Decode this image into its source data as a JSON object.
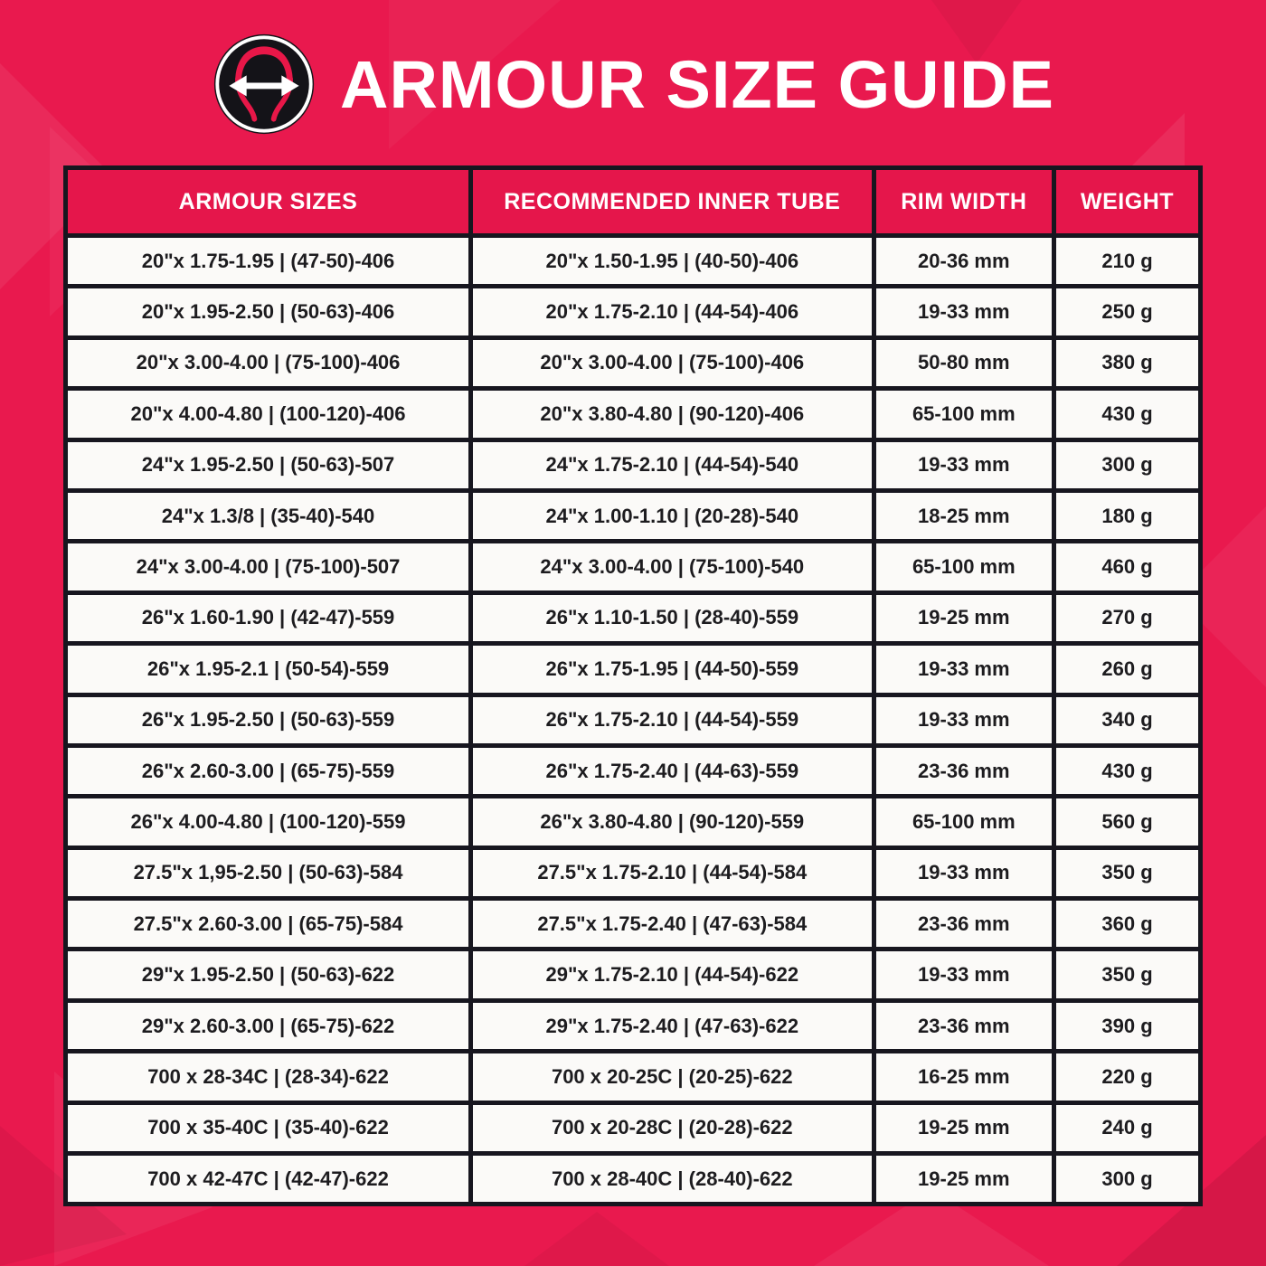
{
  "header": {
    "title": "ARMOUR SIZE GUIDE",
    "logo_name": "tire-width-arrow-logo"
  },
  "table": {
    "columns": [
      "ARMOUR SIZES",
      "RECOMMENDED INNER TUBE",
      "RIM WIDTH",
      "WEIGHT"
    ],
    "column_keys": [
      "armour-size",
      "inner-tube",
      "rim-width",
      "weight"
    ],
    "rows": [
      [
        "20\"x 1.75-1.95 | (47-50)-406",
        "20\"x 1.50-1.95 | (40-50)-406",
        "20-36 mm",
        "210 g"
      ],
      [
        "20\"x 1.95-2.50 | (50-63)-406",
        "20\"x 1.75-2.10 | (44-54)-406",
        "19-33 mm",
        "250 g"
      ],
      [
        "20\"x 3.00-4.00 | (75-100)-406",
        "20\"x 3.00-4.00 | (75-100)-406",
        "50-80 mm",
        "380 g"
      ],
      [
        "20\"x 4.00-4.80 | (100-120)-406",
        "20\"x 3.80-4.80 | (90-120)-406",
        "65-100 mm",
        "430 g"
      ],
      [
        "24\"x 1.95-2.50 | (50-63)-507",
        "24\"x 1.75-2.10 | (44-54)-540",
        "19-33 mm",
        "300 g"
      ],
      [
        "24\"x 1.3/8 | (35-40)-540",
        "24\"x 1.00-1.10 | (20-28)-540",
        "18-25 mm",
        "180 g"
      ],
      [
        "24\"x 3.00-4.00 | (75-100)-507",
        "24\"x 3.00-4.00 | (75-100)-540",
        "65-100 mm",
        "460 g"
      ],
      [
        "26\"x 1.60-1.90 | (42-47)-559",
        "26\"x 1.10-1.50 | (28-40)-559",
        "19-25 mm",
        "270 g"
      ],
      [
        "26\"x 1.95-2.1 | (50-54)-559",
        "26\"x 1.75-1.95 | (44-50)-559",
        "19-33 mm",
        "260 g"
      ],
      [
        "26\"x 1.95-2.50 | (50-63)-559",
        "26\"x 1.75-2.10 | (44-54)-559",
        "19-33 mm",
        "340 g"
      ],
      [
        "26\"x 2.60-3.00 | (65-75)-559",
        "26\"x 1.75-2.40 | (44-63)-559",
        "23-36 mm",
        "430 g"
      ],
      [
        "26\"x 4.00-4.80 | (100-120)-559",
        "26\"x 3.80-4.80 | (90-120)-559",
        "65-100 mm",
        "560 g"
      ],
      [
        "27.5\"x 1,95-2.50 | (50-63)-584",
        "27.5\"x 1.75-2.10 | (44-54)-584",
        "19-33 mm",
        "350 g"
      ],
      [
        "27.5\"x 2.60-3.00 | (65-75)-584",
        "27.5\"x 1.75-2.40 | (47-63)-584",
        "23-36 mm",
        "360 g"
      ],
      [
        "29\"x 1.95-2.50 | (50-63)-622",
        "29\"x 1.75-2.10 | (44-54)-622",
        "19-33 mm",
        "350 g"
      ],
      [
        "29\"x 2.60-3.00 | (65-75)-622",
        "29\"x 1.75-2.40 | (47-63)-622",
        "23-36 mm",
        "390 g"
      ],
      [
        "700 x 28-34C | (28-34)-622",
        "700 x 20-25C | (20-25)-622",
        "16-25 mm",
        "220 g"
      ],
      [
        "700 x 35-40C | (35-40)-622",
        "700 x 20-28C | (20-28)-622",
        "19-25 mm",
        "240 g"
      ],
      [
        "700 x 42-47C | (42-47)-622",
        "700 x 28-40C | (28-40)-622",
        "19-25 mm",
        "300 g"
      ]
    ]
  },
  "colors": {
    "background": "#E9194E",
    "header_cell": "#E5164B",
    "body_cell": "#FBFAF8",
    "table_border": "#17161F",
    "title_text": "#FFFFFF",
    "cell_text": "#1D1C1F",
    "logo_black": "#141318",
    "logo_red": "#E81748"
  }
}
